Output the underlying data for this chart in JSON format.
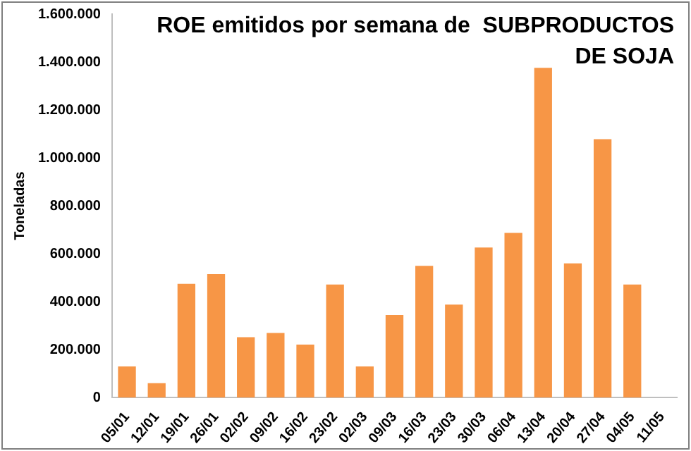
{
  "chart_data": {
    "type": "bar",
    "title": "ROE emitidos por semana de  SUBPRODUCTOS DE SOJA",
    "ylabel": "Toneladas",
    "categories": [
      "05/01",
      "12/01",
      "19/01",
      "26/01",
      "02/02",
      "09/02",
      "16/02",
      "23/02",
      "02/03",
      "09/03",
      "16/03",
      "23/03",
      "30/03",
      "06/04",
      "13/04",
      "20/04",
      "27/04",
      "04/05",
      "11/05"
    ],
    "values": [
      130000,
      60000,
      475000,
      515000,
      252000,
      270000,
      221000,
      472000,
      130000,
      345000,
      550000,
      388000,
      626000,
      687000,
      1376000,
      560000,
      1078000,
      472000,
      null
    ],
    "color": "#f79646",
    "ylim": [
      0,
      1600000
    ],
    "yticks": [
      {
        "value": 0,
        "label": "0"
      },
      {
        "value": 200000,
        "label": "200.000"
      },
      {
        "value": 400000,
        "label": "400.000"
      },
      {
        "value": 600000,
        "label": "600.000"
      },
      {
        "value": 800000,
        "label": "800.000"
      },
      {
        "value": 1000000,
        "label": "1.000.000"
      },
      {
        "value": 1200000,
        "label": "1.200.000"
      },
      {
        "value": 1400000,
        "label": "1.400.000"
      },
      {
        "value": 1600000,
        "label": "1.600.000"
      }
    ],
    "grid": false,
    "legend": false
  }
}
